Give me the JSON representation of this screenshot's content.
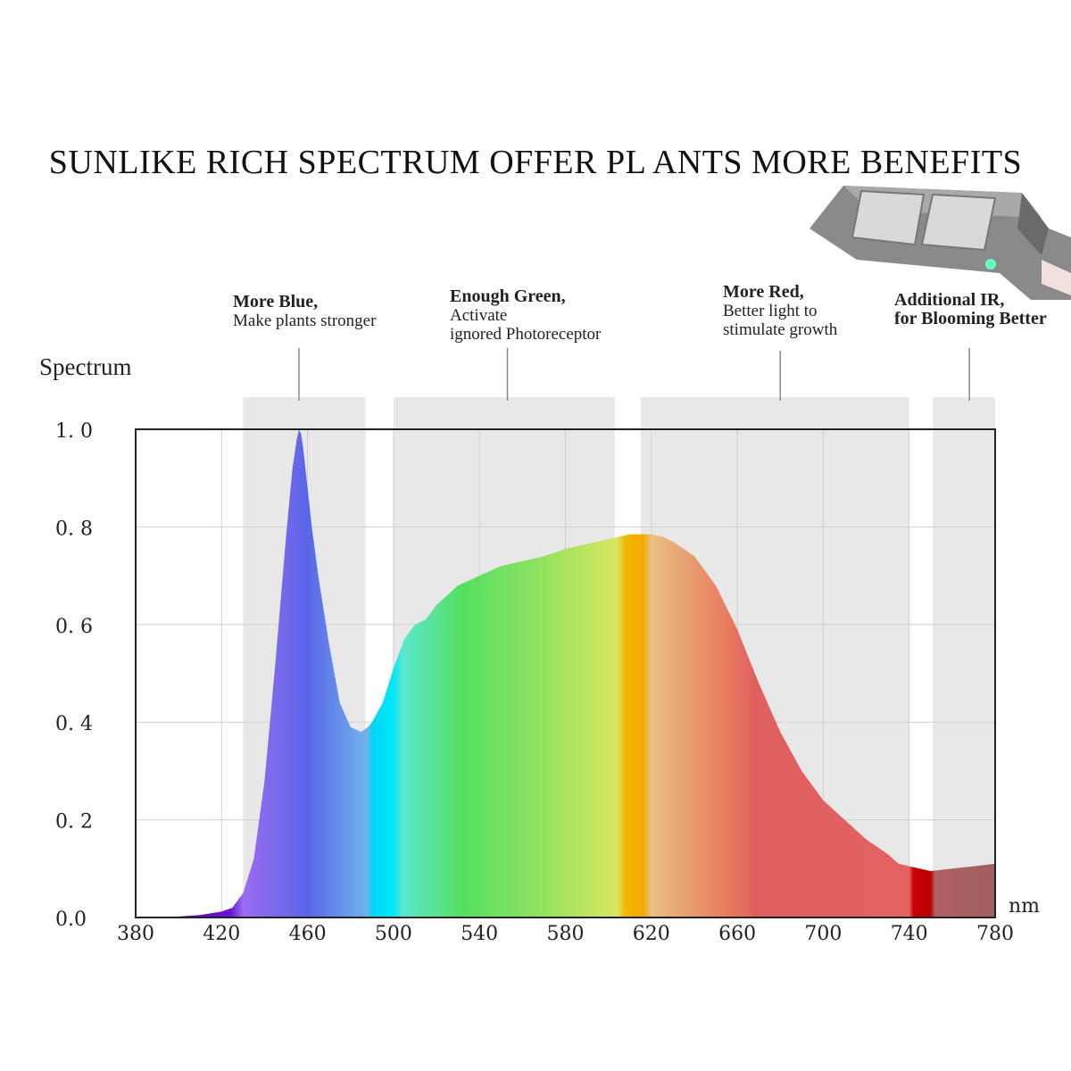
{
  "title": "SUNLIKE RICH SPECTRUM OFFER PL ANTS MORE BENEFITS",
  "annotations": [
    {
      "bold": "More Blue,",
      "lines": [
        "Make plants stronger"
      ]
    },
    {
      "bold": "Enough Green,",
      "lines": [
        "Activate",
        "ignored Photoreceptor"
      ]
    },
    {
      "bold": "More Red,",
      "lines": [
        "Better light to",
        "stimulate growth"
      ]
    },
    {
      "bold": "Additional IR,",
      "lines": [
        "for Blooming Better"
      ]
    }
  ],
  "chart_data": {
    "type": "area",
    "title": "SUNLIKE RICH SPECTRUM OFFER PL ANTS MORE BENEFITS",
    "ylabel": "Spectrum",
    "xlabel": "nm",
    "xlim": [
      380,
      780
    ],
    "ylim": [
      0,
      1.0
    ],
    "x_ticks": [
      380,
      420,
      460,
      500,
      540,
      580,
      620,
      660,
      700,
      740,
      780
    ],
    "y_ticks": [
      "0.0",
      "0.2",
      "0.4",
      "0.6",
      "0.8",
      "1.0"
    ],
    "y_tick_labels": [
      "0.0",
      "0. 2",
      "0. 4",
      "0. 6",
      "0. 8",
      "1. 0"
    ],
    "grid": true,
    "series": [
      {
        "x": [
          380,
          400,
          410,
          420,
          425,
          430,
          435,
          440,
          445,
          450,
          453,
          455,
          456,
          457,
          458,
          460,
          462,
          465,
          470,
          475,
          480,
          485,
          488,
          490,
          495,
          500,
          505,
          510,
          515,
          520,
          525,
          530,
          540,
          550,
          560,
          570,
          580,
          590,
          600,
          605,
          610,
          615,
          620,
          625,
          630,
          640,
          650,
          660,
          670,
          680,
          690,
          700,
          710,
          720,
          730,
          735,
          740,
          745,
          750,
          760,
          770,
          780
        ],
        "y": [
          0.0,
          0.002,
          0.005,
          0.012,
          0.02,
          0.05,
          0.12,
          0.28,
          0.52,
          0.78,
          0.92,
          0.98,
          1.0,
          0.99,
          0.96,
          0.88,
          0.8,
          0.7,
          0.56,
          0.44,
          0.39,
          0.38,
          0.39,
          0.4,
          0.44,
          0.51,
          0.57,
          0.6,
          0.61,
          0.64,
          0.66,
          0.68,
          0.7,
          0.72,
          0.73,
          0.74,
          0.755,
          0.765,
          0.775,
          0.78,
          0.785,
          0.785,
          0.785,
          0.78,
          0.77,
          0.74,
          0.68,
          0.59,
          0.48,
          0.38,
          0.3,
          0.24,
          0.2,
          0.16,
          0.13,
          0.11,
          0.105,
          0.1,
          0.095,
          0.1,
          0.105,
          0.11
        ]
      }
    ],
    "bands": [
      {
        "from": 430,
        "to": 487
      },
      {
        "from": 500,
        "to": 603
      },
      {
        "from": 615,
        "to": 740
      },
      {
        "from": 751,
        "to": 780
      }
    ],
    "annotation_x": [
      456,
      553,
      680,
      768
    ]
  }
}
